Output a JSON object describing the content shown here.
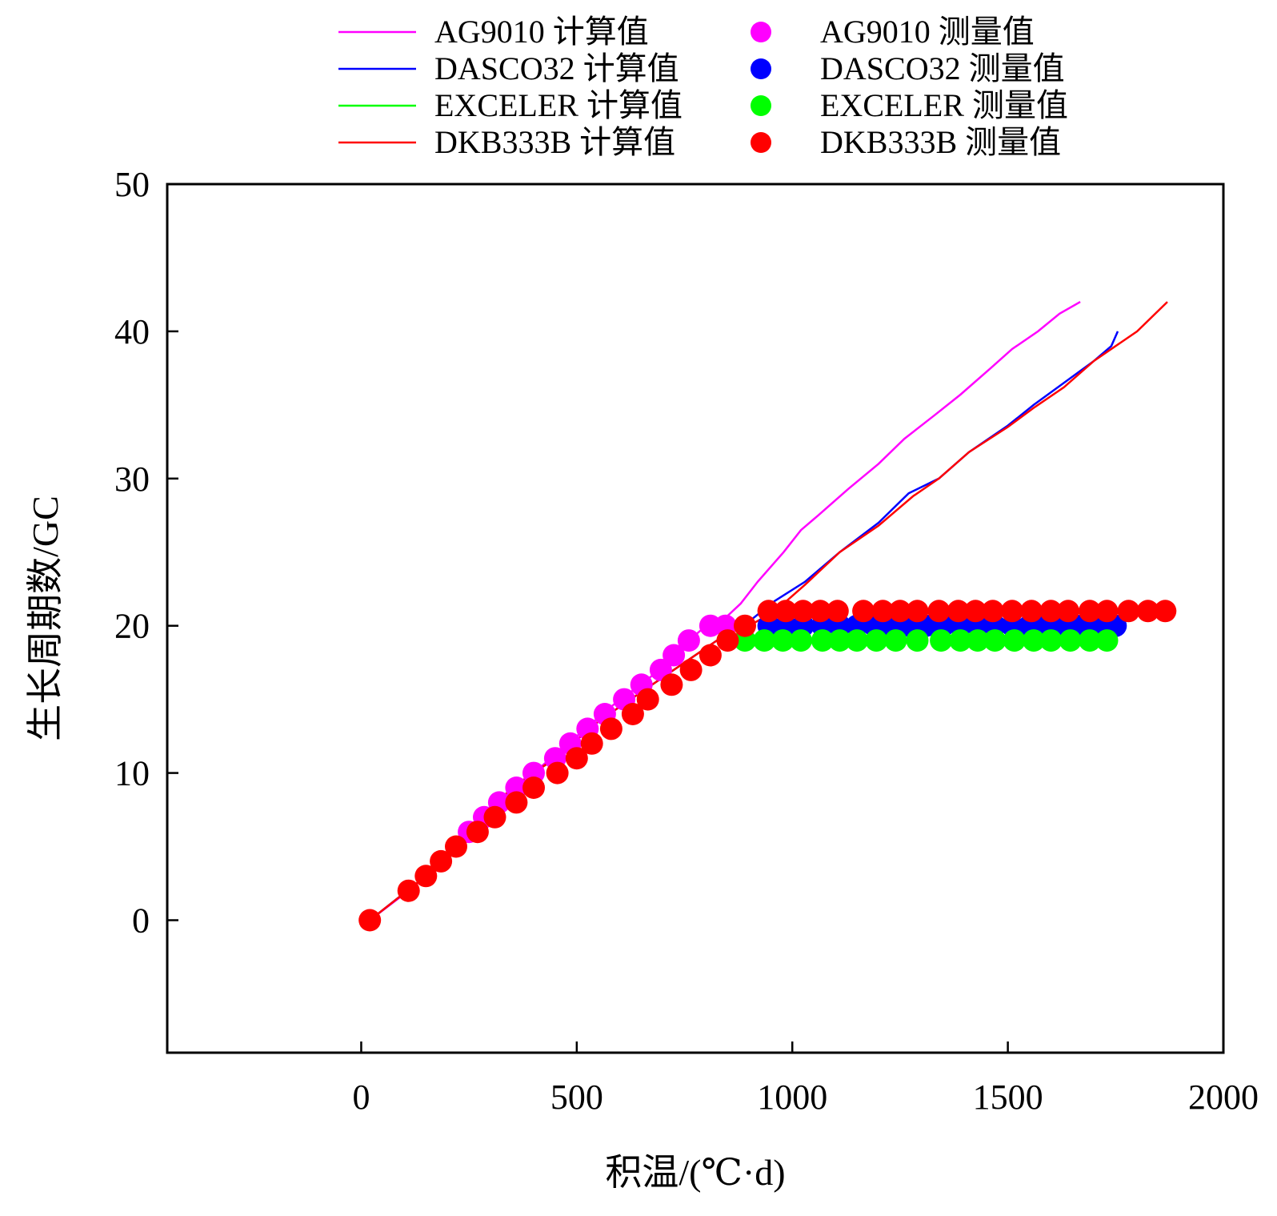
{
  "chart_data": {
    "type": "scatter",
    "title": "",
    "xlabel": "积温/(℃·d)",
    "ylabel": "生长周期数/GC",
    "xlim": [
      -450,
      2000
    ],
    "ylim": [
      -9,
      50
    ],
    "xticks": [
      0,
      500,
      1000,
      1500,
      2000
    ],
    "yticks": [
      0,
      10,
      20,
      30,
      40,
      50
    ],
    "grid": false,
    "legend_position": "top",
    "series": [
      {
        "name": "AG9010 计算值",
        "kind": "line",
        "color": "#ff00ff",
        "points": [
          [
            20,
            0
          ],
          [
            110,
            2
          ],
          [
            150,
            3
          ],
          [
            180,
            4
          ],
          [
            220,
            5
          ],
          [
            250,
            6
          ],
          [
            280,
            7
          ],
          [
            320,
            8
          ],
          [
            360,
            9
          ],
          [
            400,
            10
          ],
          [
            440,
            11
          ],
          [
            480,
            12
          ],
          [
            520,
            13
          ],
          [
            560,
            14
          ],
          [
            600,
            15
          ],
          [
            650,
            16
          ],
          [
            690,
            17
          ],
          [
            730,
            18
          ],
          [
            760,
            19
          ],
          [
            800,
            20
          ],
          [
            840,
            20.4
          ],
          [
            880,
            21.5
          ],
          [
            920,
            23
          ],
          [
            980,
            25
          ],
          [
            1020,
            26.5
          ],
          [
            1060,
            27.5
          ],
          [
            1130,
            29.3
          ],
          [
            1200,
            31
          ],
          [
            1260,
            32.7
          ],
          [
            1330,
            34.3
          ],
          [
            1390,
            35.7
          ],
          [
            1460,
            37.5
          ],
          [
            1510,
            38.8
          ],
          [
            1570,
            40
          ],
          [
            1620,
            41.2
          ],
          [
            1668,
            42
          ]
        ]
      },
      {
        "name": "DASCO32 计算值",
        "kind": "line",
        "color": "#0000ff",
        "points": [
          [
            20,
            0
          ],
          [
            150,
            3
          ],
          [
            250,
            6
          ],
          [
            350,
            9
          ],
          [
            450,
            11
          ],
          [
            550,
            13.5
          ],
          [
            650,
            15.5
          ],
          [
            750,
            17.5
          ],
          [
            850,
            19.5
          ],
          [
            900,
            20.3
          ],
          [
            960,
            21.7
          ],
          [
            1030,
            23
          ],
          [
            1110,
            25
          ],
          [
            1200,
            27
          ],
          [
            1270,
            29
          ],
          [
            1340,
            30
          ],
          [
            1410,
            31.8
          ],
          [
            1500,
            33.6
          ],
          [
            1560,
            35
          ],
          [
            1630,
            36.5
          ],
          [
            1700,
            38
          ],
          [
            1740,
            39
          ],
          [
            1755,
            40
          ]
        ]
      },
      {
        "name": "EXCELER 计算值",
        "kind": "line",
        "color": "#00ff00",
        "points": [
          [
            880,
            19
          ],
          [
            900,
            19.8
          ]
        ]
      },
      {
        "name": "DKB333B 计算值",
        "kind": "line",
        "color": "#ff0000",
        "points": [
          [
            20,
            0
          ],
          [
            150,
            3
          ],
          [
            250,
            6
          ],
          [
            350,
            9
          ],
          [
            450,
            11
          ],
          [
            550,
            13.5
          ],
          [
            650,
            15.5
          ],
          [
            750,
            17.5
          ],
          [
            850,
            19.5
          ],
          [
            900,
            20
          ],
          [
            960,
            21
          ],
          [
            1030,
            22.8
          ],
          [
            1110,
            25
          ],
          [
            1200,
            26.8
          ],
          [
            1280,
            28.8
          ],
          [
            1340,
            30
          ],
          [
            1410,
            31.8
          ],
          [
            1500,
            33.5
          ],
          [
            1560,
            34.8
          ],
          [
            1630,
            36.2
          ],
          [
            1700,
            38
          ],
          [
            1760,
            39.2
          ],
          [
            1800,
            40
          ],
          [
            1870,
            42
          ]
        ]
      },
      {
        "name": "AG9010 测量值",
        "kind": "scatter",
        "color": "#ff00ff",
        "points": [
          [
            250,
            6
          ],
          [
            285,
            7
          ],
          [
            320,
            8
          ],
          [
            360,
            9
          ],
          [
            400,
            10
          ],
          [
            450,
            11
          ],
          [
            485,
            12
          ],
          [
            525,
            13
          ],
          [
            565,
            14
          ],
          [
            610,
            15
          ],
          [
            650,
            16
          ],
          [
            695,
            17
          ],
          [
            725,
            18
          ],
          [
            760,
            19
          ],
          [
            810,
            20
          ],
          [
            845,
            20
          ]
        ]
      },
      {
        "name": "DASCO32 测量值",
        "kind": "scatter",
        "color": "#0000ff",
        "points": [
          [
            945,
            20
          ],
          [
            985,
            20
          ],
          [
            1025,
            20
          ],
          [
            1070,
            20
          ],
          [
            1110,
            20
          ],
          [
            1150,
            20
          ],
          [
            1190,
            20
          ],
          [
            1230,
            20
          ],
          [
            1270,
            20
          ],
          [
            1310,
            20
          ],
          [
            1350,
            20
          ],
          [
            1390,
            20
          ],
          [
            1430,
            20
          ],
          [
            1470,
            20
          ],
          [
            1510,
            20
          ],
          [
            1550,
            20
          ],
          [
            1590,
            20
          ],
          [
            1630,
            20
          ],
          [
            1670,
            20
          ],
          [
            1710,
            20
          ],
          [
            1750,
            20
          ]
        ]
      },
      {
        "name": "EXCELER 测量值",
        "kind": "scatter",
        "color": "#00ff00",
        "points": [
          [
            890,
            19
          ],
          [
            935,
            19
          ],
          [
            978,
            19
          ],
          [
            1020,
            19
          ],
          [
            1070,
            19
          ],
          [
            1110,
            19
          ],
          [
            1150,
            19
          ],
          [
            1195,
            19
          ],
          [
            1240,
            19
          ],
          [
            1290,
            19
          ],
          [
            1345,
            19
          ],
          [
            1390,
            19
          ],
          [
            1430,
            19
          ],
          [
            1470,
            19
          ],
          [
            1515,
            19
          ],
          [
            1560,
            19
          ],
          [
            1600,
            19
          ],
          [
            1645,
            19
          ],
          [
            1690,
            19
          ],
          [
            1730,
            19
          ]
        ]
      },
      {
        "name": "DKB333B 测量值",
        "kind": "scatter",
        "color": "#ff0000",
        "points": [
          [
            20,
            0
          ],
          [
            110,
            2
          ],
          [
            150,
            3
          ],
          [
            185,
            4
          ],
          [
            220,
            5
          ],
          [
            270,
            6
          ],
          [
            310,
            7
          ],
          [
            360,
            8
          ],
          [
            400,
            9
          ],
          [
            455,
            10
          ],
          [
            500,
            11
          ],
          [
            535,
            12
          ],
          [
            580,
            13
          ],
          [
            630,
            14
          ],
          [
            665,
            15
          ],
          [
            720,
            16
          ],
          [
            765,
            17
          ],
          [
            810,
            18
          ],
          [
            850,
            19
          ],
          [
            890,
            20
          ],
          [
            945,
            21
          ],
          [
            985,
            21
          ],
          [
            1025,
            21
          ],
          [
            1065,
            21
          ],
          [
            1105,
            21
          ],
          [
            1165,
            21
          ],
          [
            1210,
            21
          ],
          [
            1250,
            21
          ],
          [
            1290,
            21
          ],
          [
            1340,
            21
          ],
          [
            1385,
            21
          ],
          [
            1425,
            21
          ],
          [
            1465,
            21
          ],
          [
            1510,
            21
          ],
          [
            1555,
            21
          ],
          [
            1600,
            21
          ],
          [
            1640,
            21
          ],
          [
            1690,
            21
          ],
          [
            1730,
            21
          ],
          [
            1780,
            21
          ],
          [
            1825,
            21
          ],
          [
            1865,
            21
          ]
        ]
      }
    ]
  }
}
